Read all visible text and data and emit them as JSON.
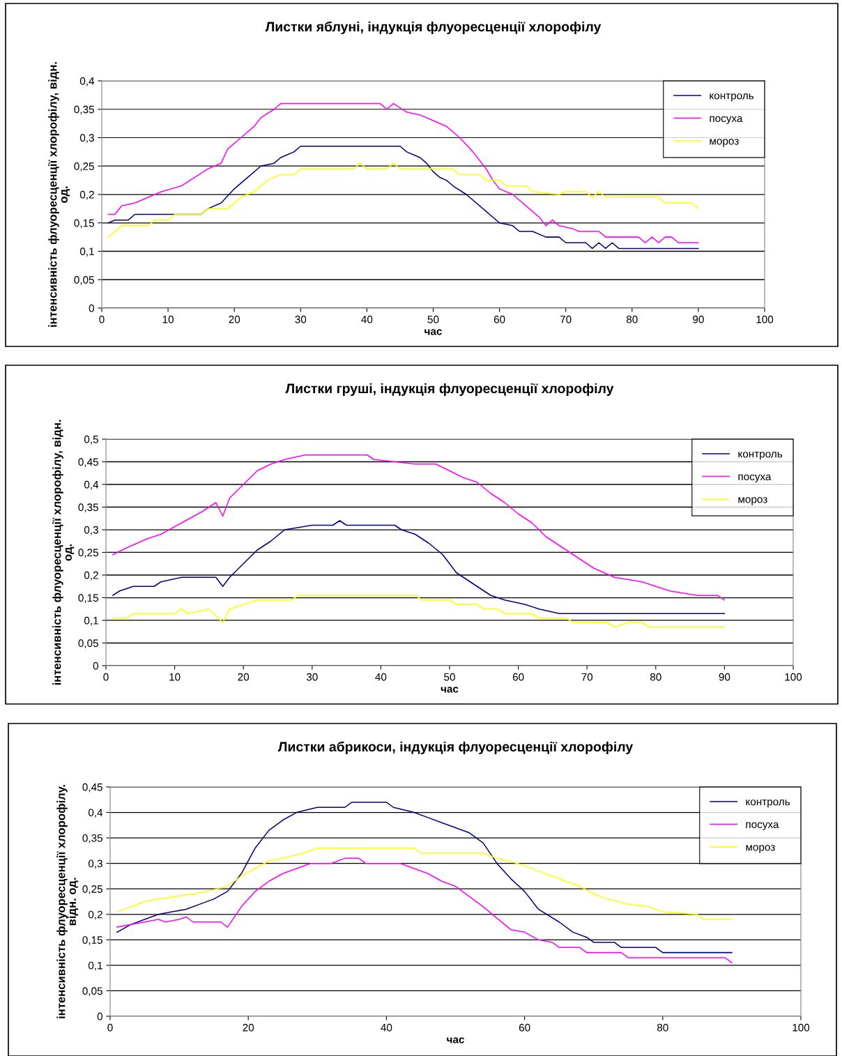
{
  "chart_data": [
    {
      "type": "line",
      "title": "Листки яблуні, індукція флуоресценції хлорофілу",
      "xlabel": "час",
      "ylabel": "інтенсивність флуоресценції хлорофілу, відн.\nод.",
      "xlim": [
        0,
        100
      ],
      "xticks": [
        0,
        10,
        20,
        30,
        40,
        50,
        60,
        70,
        80,
        90,
        100
      ],
      "ylim": [
        0,
        0.4
      ],
      "yticks": [
        {
          "value": 0,
          "label": "0"
        },
        {
          "value": 0.05,
          "label": "0,05"
        },
        {
          "value": 0.1,
          "label": "0,1"
        },
        {
          "value": 0.15,
          "label": "0,15"
        },
        {
          "value": 0.2,
          "label": "0,2"
        },
        {
          "value": 0.25,
          "label": "0,25"
        },
        {
          "value": 0.3,
          "label": "0,3"
        },
        {
          "value": 0.35,
          "label": "0,35"
        },
        {
          "value": 0.4,
          "label": "0,4"
        }
      ],
      "grid": "y",
      "legend": "top right",
      "marker": "none",
      "line_style": "solid",
      "series": [
        {
          "name": "контроль",
          "color": "#000080",
          "x": [
            1,
            2,
            4,
            5,
            15,
            16,
            18,
            20,
            22,
            24,
            26,
            27,
            28,
            29,
            30,
            44,
            45,
            46,
            48,
            49,
            50,
            51,
            52,
            53,
            55,
            58,
            60,
            62,
            63,
            65,
            67,
            69,
            70,
            72,
            73,
            74,
            75,
            76,
            77,
            78,
            90
          ],
          "values": [
            0.15,
            0.155,
            0.155,
            0.165,
            0.165,
            0.175,
            0.185,
            0.21,
            0.23,
            0.25,
            0.255,
            0.265,
            0.27,
            0.275,
            0.285,
            0.285,
            0.285,
            0.275,
            0.265,
            0.255,
            0.24,
            0.23,
            0.225,
            0.215,
            0.2,
            0.17,
            0.15,
            0.145,
            0.135,
            0.135,
            0.125,
            0.125,
            0.115,
            0.115,
            0.115,
            0.105,
            0.115,
            0.105,
            0.115,
            0.105,
            0.105
          ]
        },
        {
          "name": "посуха",
          "color": "#ff00ff",
          "x": [
            1,
            2,
            3,
            5,
            7,
            9,
            12,
            14,
            16,
            18,
            19,
            21,
            23,
            24,
            26,
            27,
            28,
            42,
            43,
            44,
            46,
            48,
            50,
            52,
            54,
            56,
            58,
            59,
            60,
            62,
            64,
            66,
            67,
            68,
            69,
            71,
            72,
            75,
            76,
            81,
            82,
            83,
            84,
            85,
            86,
            87,
            90
          ],
          "values": [
            0.165,
            0.165,
            0.18,
            0.185,
            0.195,
            0.205,
            0.215,
            0.23,
            0.245,
            0.255,
            0.28,
            0.3,
            0.32,
            0.335,
            0.35,
            0.36,
            0.36,
            0.36,
            0.35,
            0.36,
            0.345,
            0.34,
            0.33,
            0.32,
            0.3,
            0.275,
            0.245,
            0.225,
            0.21,
            0.2,
            0.18,
            0.16,
            0.145,
            0.155,
            0.145,
            0.14,
            0.135,
            0.135,
            0.125,
            0.125,
            0.115,
            0.125,
            0.115,
            0.125,
            0.125,
            0.115,
            0.115
          ]
        },
        {
          "name": "мороз",
          "color": "#ffff00",
          "x": [
            1,
            3,
            7,
            8,
            10,
            11,
            15,
            16,
            19,
            21,
            23,
            25,
            27,
            29,
            30,
            38,
            39,
            40,
            43,
            44,
            45,
            53,
            54,
            57,
            58,
            60,
            61,
            64,
            65,
            69,
            70,
            73,
            74,
            75,
            76,
            84,
            85,
            89,
            90
          ],
          "values": [
            0.125,
            0.145,
            0.145,
            0.155,
            0.155,
            0.165,
            0.165,
            0.175,
            0.175,
            0.195,
            0.205,
            0.225,
            0.235,
            0.235,
            0.245,
            0.245,
            0.255,
            0.245,
            0.245,
            0.255,
            0.245,
            0.245,
            0.235,
            0.235,
            0.225,
            0.225,
            0.215,
            0.215,
            0.205,
            0.2,
            0.205,
            0.205,
            0.195,
            0.205,
            0.195,
            0.195,
            0.185,
            0.185,
            0.175
          ]
        }
      ]
    },
    {
      "type": "line",
      "title": "Листки груші, індукція флуоресценції хлорофілу",
      "xlabel": "час",
      "ylabel": "інтенсивність флуоресценції хлорофілу, відн.\nод.",
      "xlim": [
        0,
        100
      ],
      "xticks": [
        0,
        10,
        20,
        30,
        40,
        50,
        60,
        70,
        80,
        90,
        100
      ],
      "ylim": [
        0,
        0.5
      ],
      "yticks": [
        {
          "value": 0,
          "label": "0"
        },
        {
          "value": 0.05,
          "label": "0,05"
        },
        {
          "value": 0.1,
          "label": "0,1"
        },
        {
          "value": 0.15,
          "label": "0,15"
        },
        {
          "value": 0.2,
          "label": "0,2"
        },
        {
          "value": 0.25,
          "label": "0,25"
        },
        {
          "value": 0.3,
          "label": "0,3"
        },
        {
          "value": 0.35,
          "label": "0,35"
        },
        {
          "value": 0.4,
          "label": "0,4"
        },
        {
          "value": 0.45,
          "label": "0,45"
        },
        {
          "value": 0.5,
          "label": "0,5"
        }
      ],
      "grid": "y",
      "legend": "top right",
      "marker": "none",
      "line_style": "solid",
      "series": [
        {
          "name": "контроль",
          "color": "#000080",
          "x": [
            1,
            2,
            4,
            7,
            8,
            11,
            16,
            17,
            18,
            20,
            22,
            24,
            26,
            30,
            33,
            34,
            35,
            42,
            43,
            45,
            47,
            49,
            51,
            53,
            56,
            58,
            61,
            63,
            66,
            90
          ],
          "values": [
            0.155,
            0.165,
            0.175,
            0.175,
            0.185,
            0.195,
            0.195,
            0.175,
            0.195,
            0.225,
            0.255,
            0.275,
            0.3,
            0.31,
            0.31,
            0.32,
            0.31,
            0.31,
            0.3,
            0.29,
            0.27,
            0.245,
            0.205,
            0.185,
            0.155,
            0.145,
            0.135,
            0.125,
            0.115,
            0.115
          ]
        },
        {
          "name": "посуха",
          "color": "#ff00ff",
          "x": [
            1,
            3,
            6,
            8,
            11,
            14,
            16,
            17,
            18,
            20,
            22,
            24,
            26,
            29,
            38,
            39,
            45,
            48,
            50,
            52,
            54,
            56,
            58,
            60,
            62,
            64,
            66,
            68,
            71,
            74,
            78,
            82,
            86,
            89,
            90
          ],
          "values": [
            0.245,
            0.26,
            0.28,
            0.29,
            0.315,
            0.34,
            0.36,
            0.33,
            0.37,
            0.4,
            0.43,
            0.445,
            0.455,
            0.465,
            0.465,
            0.455,
            0.445,
            0.445,
            0.43,
            0.415,
            0.405,
            0.38,
            0.36,
            0.335,
            0.315,
            0.285,
            0.265,
            0.245,
            0.215,
            0.195,
            0.185,
            0.165,
            0.155,
            0.155,
            0.145
          ]
        },
        {
          "name": "мороз",
          "color": "#ffff00",
          "x": [
            1,
            3,
            4,
            10,
            11,
            12,
            15,
            17,
            18,
            20,
            22,
            27,
            28,
            45,
            46,
            50,
            51,
            54,
            55,
            57,
            58,
            62,
            63,
            67,
            68,
            73,
            74,
            76,
            78,
            79,
            90
          ],
          "values": [
            0.105,
            0.105,
            0.115,
            0.115,
            0.125,
            0.115,
            0.125,
            0.095,
            0.125,
            0.135,
            0.145,
            0.145,
            0.155,
            0.155,
            0.145,
            0.145,
            0.135,
            0.135,
            0.125,
            0.125,
            0.115,
            0.115,
            0.105,
            0.105,
            0.095,
            0.095,
            0.085,
            0.095,
            0.095,
            0.085,
            0.085
          ]
        }
      ]
    },
    {
      "type": "line",
      "title": "Листки абрикоси, індукція флуоресценції хлорофілу",
      "xlabel": "час",
      "ylabel": "інтенсивність флуоресценції хлорофілу.\nвідн. од.",
      "xlim": [
        0,
        100
      ],
      "xticks": [
        0,
        20,
        40,
        60,
        80,
        100
      ],
      "ylim": [
        0,
        0.45
      ],
      "yticks": [
        {
          "value": 0,
          "label": "0"
        },
        {
          "value": 0.05,
          "label": "0,05"
        },
        {
          "value": 0.1,
          "label": "0,1"
        },
        {
          "value": 0.15,
          "label": "0,15"
        },
        {
          "value": 0.2,
          "label": "0,2"
        },
        {
          "value": 0.25,
          "label": "0,25"
        },
        {
          "value": 0.3,
          "label": "0,3"
        },
        {
          "value": 0.35,
          "label": "0,35"
        },
        {
          "value": 0.4,
          "label": "0,4"
        },
        {
          "value": 0.45,
          "label": "0,45"
        }
      ],
      "grid": "y",
      "legend": "top right",
      "marker": "none",
      "line_style": "solid",
      "series": [
        {
          "name": "контроль",
          "color": "#000080",
          "x": [
            1,
            3,
            5,
            7,
            9,
            11,
            13,
            15,
            17,
            19,
            21,
            23,
            25,
            27,
            30,
            34,
            35,
            40,
            41,
            44,
            46,
            48,
            50,
            52,
            54,
            56,
            58,
            60,
            62,
            65,
            67,
            69,
            70,
            73,
            74,
            79,
            80,
            90
          ],
          "values": [
            0.165,
            0.18,
            0.19,
            0.2,
            0.205,
            0.21,
            0.22,
            0.23,
            0.245,
            0.28,
            0.33,
            0.365,
            0.385,
            0.4,
            0.41,
            0.41,
            0.42,
            0.42,
            0.41,
            0.4,
            0.39,
            0.38,
            0.37,
            0.36,
            0.34,
            0.3,
            0.27,
            0.245,
            0.21,
            0.185,
            0.165,
            0.155,
            0.145,
            0.145,
            0.135,
            0.135,
            0.125,
            0.125
          ]
        },
        {
          "name": "посуха",
          "color": "#ff00ff",
          "x": [
            1,
            5,
            7,
            8,
            10,
            11,
            12,
            16,
            17,
            19,
            21,
            23,
            25,
            27,
            29,
            32,
            34,
            36,
            37,
            42,
            44,
            46,
            48,
            50,
            52,
            54,
            58,
            60,
            62,
            64,
            65,
            68,
            69,
            74,
            75,
            89,
            90
          ],
          "values": [
            0.175,
            0.185,
            0.19,
            0.185,
            0.19,
            0.195,
            0.185,
            0.185,
            0.175,
            0.215,
            0.245,
            0.265,
            0.28,
            0.29,
            0.3,
            0.3,
            0.31,
            0.31,
            0.3,
            0.3,
            0.29,
            0.28,
            0.265,
            0.255,
            0.235,
            0.215,
            0.17,
            0.165,
            0.15,
            0.145,
            0.135,
            0.135,
            0.125,
            0.125,
            0.115,
            0.115,
            0.105
          ]
        },
        {
          "name": "мороз",
          "color": "#ffff00",
          "x": [
            1,
            3,
            5,
            7,
            12,
            14,
            17,
            19,
            21,
            23,
            25,
            28,
            30,
            44,
            45,
            54,
            56,
            59,
            62,
            64,
            66,
            68,
            70,
            72,
            75,
            78,
            80,
            85,
            86,
            90
          ],
          "values": [
            0.205,
            0.215,
            0.225,
            0.23,
            0.24,
            0.245,
            0.255,
            0.275,
            0.29,
            0.305,
            0.31,
            0.32,
            0.33,
            0.33,
            0.32,
            0.32,
            0.31,
            0.3,
            0.285,
            0.275,
            0.265,
            0.255,
            0.24,
            0.23,
            0.22,
            0.215,
            0.205,
            0.2,
            0.19,
            0.19
          ]
        }
      ]
    }
  ]
}
